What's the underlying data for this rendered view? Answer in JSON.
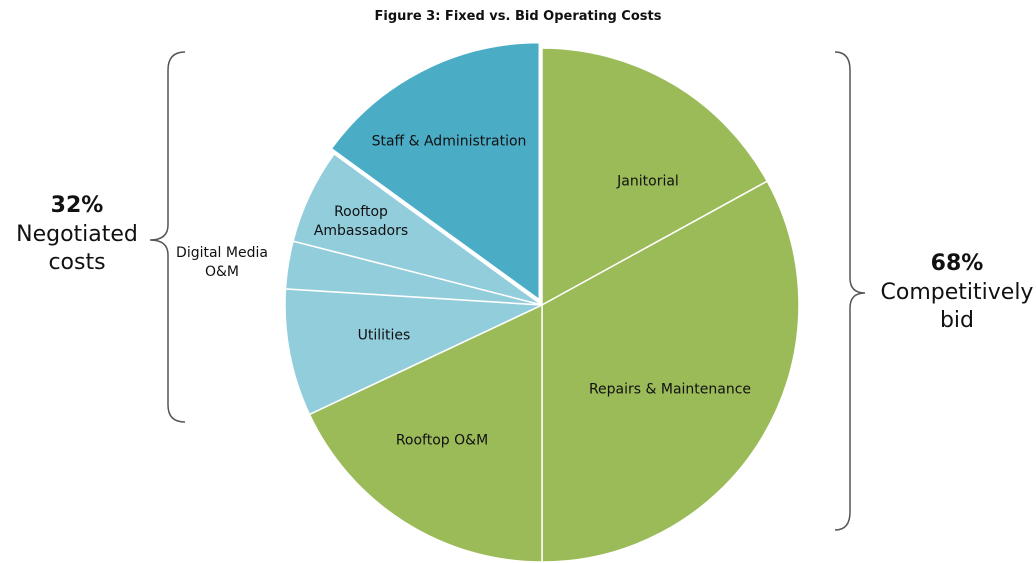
{
  "chart_data": {
    "type": "pie",
    "title": "Figure 3: Fixed vs. Bid Operating Costs",
    "categories": [
      "Janitorial",
      "Repairs & Maintenance",
      "Rooftop O&M",
      "Utilities",
      "Digital Media O&M",
      "Rooftop Ambassadors",
      "Staff & Administration"
    ],
    "values": [
      17,
      33,
      18,
      8,
      3,
      6,
      15
    ],
    "colors": [
      "#9bbb59",
      "#9bbb59",
      "#9bbb59",
      "#92cddc",
      "#92cddc",
      "#92cddc",
      "#4bacc6"
    ],
    "annotations": [
      {
        "value": "32%",
        "text": "Negotiated costs"
      },
      {
        "value": "68%",
        "text": "Competitively bid"
      }
    ]
  }
}
